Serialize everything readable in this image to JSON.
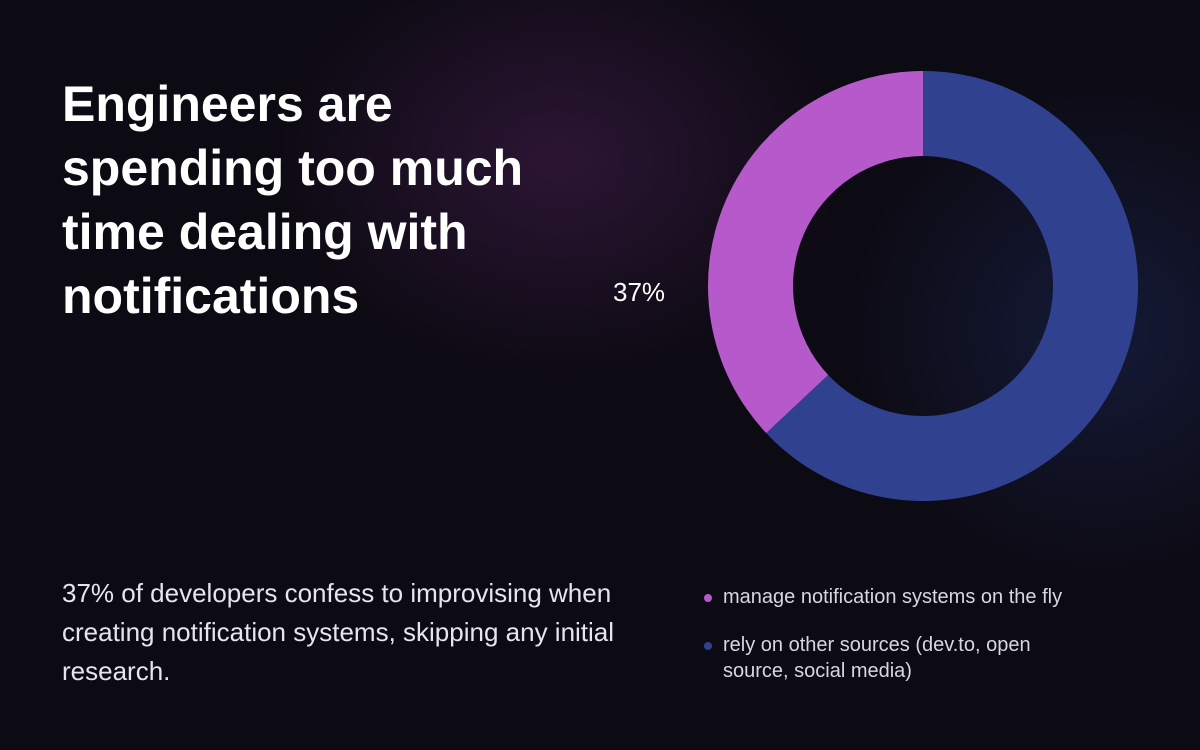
{
  "chart_data": {
    "type": "pie",
    "donut": true,
    "title": "Engineers are spending too much time dealing with notifications",
    "description": "37% of developers confess to improvising when creating notification systems, skipping any initial research.",
    "categories": [
      "manage notification systems on the fly",
      "rely on other sources (dev.to, open source, social media)"
    ],
    "values": [
      37,
      63
    ],
    "value_labels": [
      "37%",
      null
    ],
    "colors": [
      "#b65acb",
      "#30428f"
    ]
  }
}
